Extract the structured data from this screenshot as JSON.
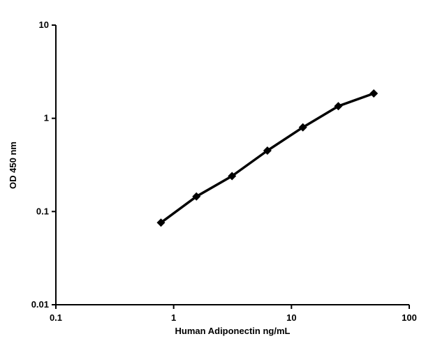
{
  "chart_data": {
    "type": "line",
    "title": "",
    "xlabel": "Human Adiponectin ng/mL",
    "ylabel": "OD 450 nm",
    "x_scale": "log",
    "y_scale": "log",
    "xlim": [
      0.1,
      100
    ],
    "ylim": [
      0.01,
      10
    ],
    "x_ticks": [
      "0.1",
      "1",
      "10",
      "100"
    ],
    "y_ticks": [
      "0.01",
      "0.1",
      "1",
      "10"
    ],
    "grid": false,
    "legend": "none",
    "marker": "diamond",
    "color": "#000000",
    "series": [
      {
        "x": [
          0.78,
          1.56,
          3.13,
          6.25,
          12.5,
          25,
          50
        ],
        "y": [
          0.076,
          0.145,
          0.24,
          0.45,
          0.8,
          1.35,
          1.85
        ]
      }
    ]
  }
}
